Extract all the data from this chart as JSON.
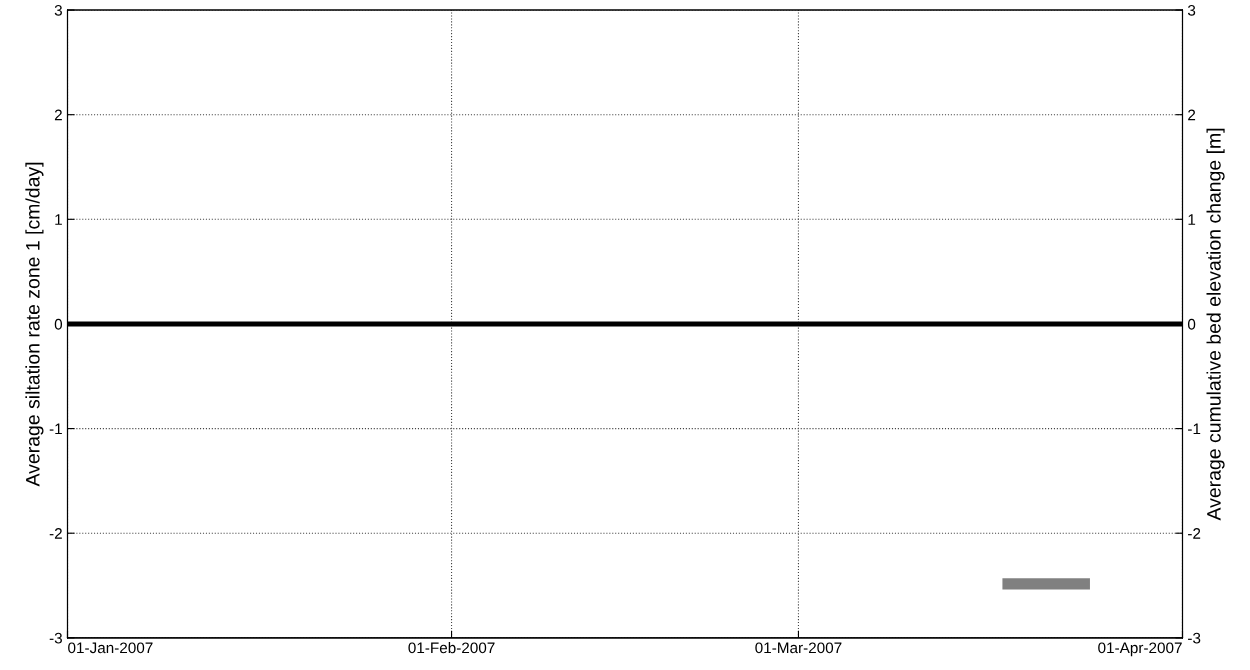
{
  "chart_data": {
    "type": "line",
    "ylabel": "Average siltation rate zone 1 [cm/day]",
    "y2label": "Average cumulative bed elevation change [m]",
    "series": [
      {
        "color": "#000000",
        "x": [
          "2007-01-01",
          "2007-04-01"
        ],
        "values": [
          0,
          0
        ]
      }
    ],
    "xlim": [
      "2007-01-01",
      "2007-04-01"
    ],
    "xticks": [
      {
        "value": "2007-01-01",
        "label": "01-Jan-2007"
      },
      {
        "value": "2007-02-01",
        "label": "01-Feb-2007"
      },
      {
        "value": "2007-03-01",
        "label": "01-Mar-2007"
      },
      {
        "value": "2007-04-01",
        "label": "01-Apr-2007"
      }
    ],
    "ylim": [
      -3,
      3
    ],
    "yticks": [
      -3,
      -2,
      -1,
      0,
      1,
      2,
      3
    ],
    "y2lim": [
      -3,
      3
    ],
    "y2ticks": [
      -3,
      -2,
      -1,
      0,
      1,
      2,
      3
    ],
    "grid": true,
    "marker": "none",
    "line_style": "solid"
  }
}
